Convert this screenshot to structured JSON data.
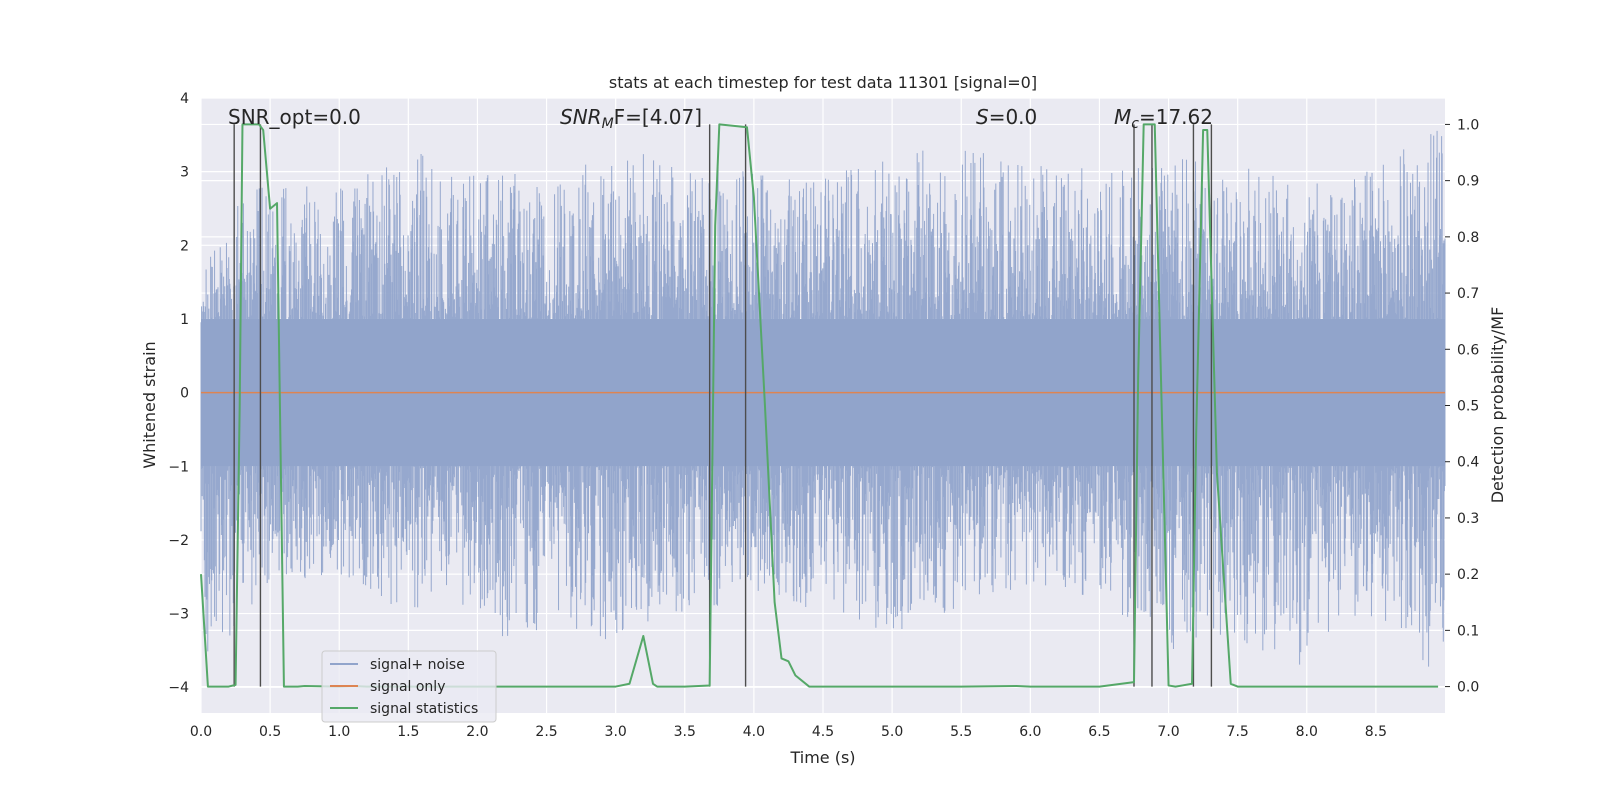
{
  "chart_data": {
    "type": "line",
    "title": "stats at each timestep for test data 11301 [signal=0]",
    "xlabel": "Time (s)",
    "ylabel_left": "Whitened strain",
    "ylabel_right": "Detection probability/MF",
    "xlim": [
      0.0,
      9.0
    ],
    "ylim_left": [
      -4.35,
      4.0
    ],
    "ylim_right": [
      -0.047,
      1.047
    ],
    "x_ticks": [
      "0.0",
      "0.5",
      "1.0",
      "1.5",
      "2.0",
      "2.5",
      "3.0",
      "3.5",
      "4.0",
      "4.5",
      "5.0",
      "5.5",
      "6.0",
      "6.5",
      "7.0",
      "7.5",
      "8.0",
      "8.5"
    ],
    "x_tick_values": [
      0.0,
      0.5,
      1.0,
      1.5,
      2.0,
      2.5,
      3.0,
      3.5,
      4.0,
      4.5,
      5.0,
      5.5,
      6.0,
      6.5,
      7.0,
      7.5,
      8.0,
      8.5
    ],
    "y_left_ticks": [
      "4",
      "3",
      "2",
      "1",
      "0",
      "−1",
      "−2",
      "−3",
      "−4"
    ],
    "y_left_tick_values": [
      4,
      3,
      2,
      1,
      0,
      -1,
      -2,
      -3,
      -4
    ],
    "y_right_ticks": [
      "1.0",
      "0.9",
      "0.8",
      "0.7",
      "0.6",
      "0.5",
      "0.4",
      "0.3",
      "0.2",
      "0.1",
      "0.0"
    ],
    "y_right_tick_values": [
      1.0,
      0.9,
      0.8,
      0.7,
      0.6,
      0.5,
      0.4,
      0.3,
      0.2,
      0.1,
      0.0
    ],
    "grid": true,
    "legend_position": "lower-left",
    "annotations": {
      "snr_opt": "SNR_opt=0.0",
      "snr_mf_main": "SNR",
      "snr_mf_sub": "M",
      "snr_mf_tail": "F=[4.07]",
      "s_main": "S",
      "s_tail": "=0.0",
      "mc_main": "M",
      "mc_sub": "c",
      "mc_tail": "=17.62"
    },
    "series": [
      {
        "name": "signal+ noise",
        "color": "#91a4cb",
        "style": "noise band",
        "approx_envelope": {
          "upper": [
            [
              0.0,
              1.9
            ],
            [
              0.3,
              2.7
            ],
            [
              0.5,
              2.9
            ],
            [
              1.0,
              2.8
            ],
            [
              1.5,
              3.3
            ],
            [
              2.0,
              3.0
            ],
            [
              2.5,
              3.0
            ],
            [
              3.0,
              3.3
            ],
            [
              3.5,
              3.2
            ],
            [
              4.0,
              3.0
            ],
            [
              4.5,
              2.9
            ],
            [
              5.0,
              3.3
            ],
            [
              5.5,
              3.3
            ],
            [
              6.0,
              3.2
            ],
            [
              6.5,
              3.0
            ],
            [
              7.0,
              3.2
            ],
            [
              7.5,
              3.1
            ],
            [
              8.0,
              2.8
            ],
            [
              8.5,
              3.1
            ],
            [
              8.9,
              3.6
            ]
          ],
          "lower": [
            [
              0.0,
              -2.3
            ],
            [
              0.05,
              -3.7
            ],
            [
              0.5,
              -2.6
            ],
            [
              1.0,
              -2.5
            ],
            [
              1.5,
              -3.0
            ],
            [
              2.0,
              -2.9
            ],
            [
              2.3,
              -3.6
            ],
            [
              2.5,
              -3.1
            ],
            [
              3.0,
              -3.4
            ],
            [
              3.5,
              -3.2
            ],
            [
              4.0,
              -2.7
            ],
            [
              4.5,
              -3.0
            ],
            [
              5.0,
              -3.3
            ],
            [
              5.5,
              -2.9
            ],
            [
              6.0,
              -2.6
            ],
            [
              6.5,
              -2.8
            ],
            [
              7.0,
              -3.5
            ],
            [
              7.5,
              -3.3
            ],
            [
              7.8,
              -3.9
            ],
            [
              8.5,
              -3.0
            ],
            [
              8.95,
              -3.9
            ]
          ]
        }
      },
      {
        "name": "signal only",
        "color": "#dd8452",
        "x": [
          0.0,
          9.0
        ],
        "y": [
          0.0,
          0.0
        ]
      },
      {
        "name": "signal statistics",
        "color": "#55a868",
        "axis": "right",
        "x": [
          0.0,
          0.05,
          0.1,
          0.2,
          0.25,
          0.28,
          0.3,
          0.42,
          0.45,
          0.5,
          0.55,
          0.6,
          0.7,
          0.75,
          1.0,
          1.1,
          1.2,
          1.5,
          2.0,
          2.5,
          3.0,
          3.1,
          3.2,
          3.27,
          3.3,
          3.5,
          3.68,
          3.72,
          3.75,
          3.95,
          4.0,
          4.08,
          4.15,
          4.2,
          4.25,
          4.3,
          4.4,
          4.5,
          5.0,
          5.5,
          5.9,
          6.0,
          6.5,
          6.75,
          6.78,
          6.82,
          6.9,
          7.0,
          7.05,
          7.1,
          7.17,
          7.2,
          7.25,
          7.28,
          7.35,
          7.45,
          7.5,
          8.0,
          8.5,
          8.95
        ],
        "y": [
          0.2,
          0.0,
          0.0,
          0.0,
          0.003,
          0.5,
          1.0,
          1.0,
          0.99,
          0.85,
          0.86,
          0.0,
          0.0,
          0.001,
          0.0,
          0.001,
          0.0,
          0.0,
          0.0,
          0.0,
          0.0,
          0.005,
          0.09,
          0.005,
          0.0,
          0.0,
          0.002,
          0.82,
          1.0,
          0.995,
          0.87,
          0.5,
          0.15,
          0.05,
          0.045,
          0.02,
          0.0,
          0.0,
          0.0,
          0.0,
          0.001,
          0.0,
          0.0,
          0.008,
          0.55,
          1.0,
          1.0,
          0.002,
          0.0,
          0.002,
          0.005,
          0.45,
          0.99,
          0.99,
          0.38,
          0.005,
          0.0,
          0.0,
          0.0,
          0.0
        ]
      }
    ],
    "vertical_markers": [
      0.24,
      0.43,
      3.68,
      3.94,
      6.75,
      6.88,
      7.18,
      7.31
    ]
  }
}
